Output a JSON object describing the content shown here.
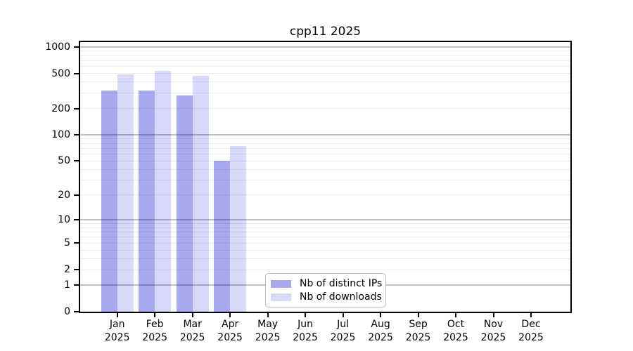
{
  "title": "cpp11 2025",
  "chart_data": {
    "type": "bar",
    "title": "cpp11 2025",
    "categories": [
      "Jan",
      "Feb",
      "Mar",
      "Apr",
      "May",
      "Jun",
      "Jul",
      "Aug",
      "Sep",
      "Oct",
      "Nov",
      "Dec"
    ],
    "x_label_year": "2025",
    "series": [
      {
        "name": "Nb of distinct IPs",
        "color": "#a8a8f0",
        "values": [
          320,
          320,
          283,
          50,
          0,
          0,
          0,
          0,
          0,
          0,
          0,
          0
        ]
      },
      {
        "name": "Nb of downloads",
        "color": "#d8d8fa",
        "values": [
          485,
          535,
          470,
          75,
          0,
          0,
          0,
          0,
          0,
          0,
          0,
          0
        ]
      }
    ],
    "y_scale": "log10(value+1)",
    "ylim": [
      0,
      1000
    ],
    "y_ticks": [
      0,
      1,
      2,
      5,
      10,
      20,
      50,
      100,
      200,
      500,
      1000
    ],
    "y_gridlines_minor": [
      2,
      3,
      4,
      5,
      6,
      7,
      8,
      9,
      20,
      30,
      40,
      50,
      60,
      70,
      80,
      90,
      200,
      300,
      400,
      500,
      600,
      700,
      800,
      900
    ],
    "y_gridlines_major": [
      1,
      10,
      100,
      1000
    ],
    "grid": true,
    "legend_position": "bottom-center"
  },
  "colors": {
    "background": "#ffffff",
    "axis": "#000000",
    "grid_minor": "#ececec",
    "grid_major": "#c0c0c0",
    "bar_distinct_ips": "#a8a8f0",
    "bar_downloads": "#d8d8fa",
    "legend_border": "#bdbdbd",
    "text": "#000000"
  }
}
